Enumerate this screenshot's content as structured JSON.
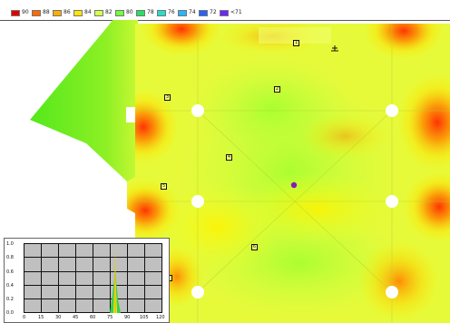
{
  "legend": [
    {
      "label": "90",
      "color": "#e10000"
    },
    {
      "label": "88",
      "color": "#ff6a00"
    },
    {
      "label": "86",
      "color": "#ffae00"
    },
    {
      "label": "84",
      "color": "#ffe600"
    },
    {
      "label": "82",
      "color": "#d8ff4a"
    },
    {
      "label": "80",
      "color": "#74ff3a"
    },
    {
      "label": "78",
      "color": "#28e060"
    },
    {
      "label": "76",
      "color": "#28dccc"
    },
    {
      "label": "74",
      "color": "#28b4ff"
    },
    {
      "label": "72",
      "color": "#2862ff"
    },
    {
      "label": "<71",
      "color": "#6a28ff"
    }
  ],
  "markers": [
    "1",
    "2",
    "3",
    "4",
    "5",
    "6",
    "7"
  ],
  "histogram": {
    "y_ticks": [
      "1.0",
      "0.8",
      "0.6",
      "0.4",
      "0.2",
      "0.0"
    ],
    "x_ticks": [
      "0",
      "15",
      "30",
      "45",
      "60",
      "75",
      "90",
      "105",
      "120"
    ]
  }
}
